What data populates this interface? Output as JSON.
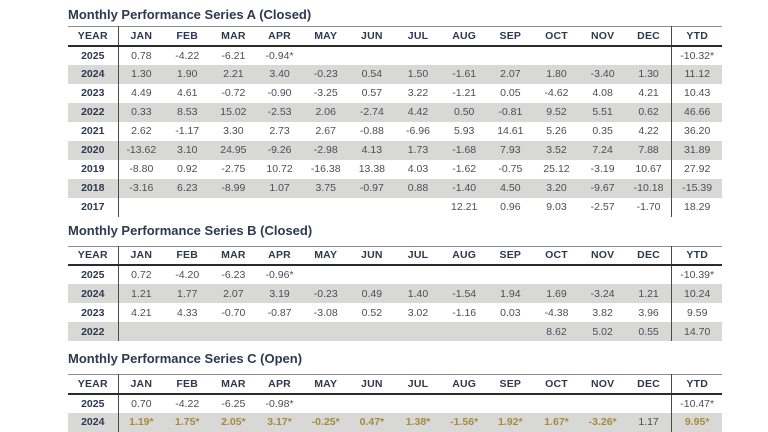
{
  "colors": {
    "title_navy": "#2d3950",
    "data_gray": "#4a4e55",
    "highlight_gold": "#a8893c",
    "row_stripe": "#d8d8d6"
  },
  "tables": [
    {
      "title": "Monthly Performance Series A (Closed)",
      "columns": [
        "YEAR",
        "JAN",
        "FEB",
        "MAR",
        "APR",
        "MAY",
        "JUN",
        "JUL",
        "AUG",
        "SEP",
        "OCT",
        "NOV",
        "DEC",
        "YTD"
      ],
      "rows": [
        {
          "year": "2025",
          "values": [
            "0.78",
            "-4.22",
            "-6.21",
            "-0.94*",
            "",
            "",
            "",
            "",
            "",
            "",
            "",
            ""
          ],
          "ytd": "-10.32*"
        },
        {
          "year": "2024",
          "values": [
            "1.30",
            "1.90",
            "2.21",
            "3.40",
            "-0.23",
            "0.54",
            "1.50",
            "-1.61",
            "2.07",
            "1.80",
            "-3.40",
            "1.30"
          ],
          "ytd": "11.12"
        },
        {
          "year": "2023",
          "values": [
            "4.49",
            "4.61",
            "-0.72",
            "-0.90",
            "-3.25",
            "0.57",
            "3.22",
            "-1.21",
            "0.05",
            "-4.62",
            "4.08",
            "4.21"
          ],
          "ytd": "10.43"
        },
        {
          "year": "2022",
          "values": [
            "0.33",
            "8.53",
            "15.02",
            "-2.53",
            "2.06",
            "-2.74",
            "4.42",
            "0.50",
            "-0.81",
            "9.52",
            "5.51",
            "0.62"
          ],
          "ytd": "46.66"
        },
        {
          "year": "2021",
          "values": [
            "2.62",
            "-1.17",
            "3.30",
            "2.73",
            "2.67",
            "-0.88",
            "-6.96",
            "5.93",
            "14.61",
            "5.26",
            "0.35",
            "4.22"
          ],
          "ytd": "36.20"
        },
        {
          "year": "2020",
          "values": [
            "-13.62",
            "3.10",
            "24.95",
            "-9.26",
            "-2.98",
            "4.13",
            "1.73",
            "-1.68",
            "7.93",
            "3.52",
            "7.24",
            "7.88"
          ],
          "ytd": "31.89"
        },
        {
          "year": "2019",
          "values": [
            "-8.80",
            "0.92",
            "-2.75",
            "10.72",
            "-16.38",
            "13.38",
            "4.03",
            "-1.62",
            "-0.75",
            "25.12",
            "-3.19",
            "10.67"
          ],
          "ytd": "27.92"
        },
        {
          "year": "2018",
          "values": [
            "-3.16",
            "6.23",
            "-8.99",
            "1.07",
            "3.75",
            "-0.97",
            "0.88",
            "-1.40",
            "4.50",
            "3.20",
            "-9.67",
            "-10.18"
          ],
          "ytd": "-15.39"
        },
        {
          "year": "2017",
          "values": [
            "",
            "",
            "",
            "",
            "",
            "",
            "",
            "12.21",
            "0.96",
            "9.03",
            "-2.57",
            "-1.70"
          ],
          "ytd": "18.29"
        }
      ]
    },
    {
      "title": "Monthly Performance Series B (Closed)",
      "columns": [
        "YEAR",
        "JAN",
        "FEB",
        "MAR",
        "APR",
        "MAY",
        "JUN",
        "JUL",
        "AUG",
        "SEP",
        "OCT",
        "NOV",
        "DEC",
        "YTD"
      ],
      "rows": [
        {
          "year": "2025",
          "values": [
            "0.72",
            "-4.20",
            "-6.23",
            "-0.96*",
            "",
            "",
            "",
            "",
            "",
            "",
            "",
            ""
          ],
          "ytd": "-10.39*"
        },
        {
          "year": "2024",
          "values": [
            "1.21",
            "1.77",
            "2.07",
            "3.19",
            "-0.23",
            "0.49",
            "1.40",
            "-1.54",
            "1.94",
            "1.69",
            "-3.24",
            "1.21"
          ],
          "ytd": "10.24"
        },
        {
          "year": "2023",
          "values": [
            "4.21",
            "4.33",
            "-0.70",
            "-0.87",
            "-3.08",
            "0.52",
            "3.02",
            "-1.16",
            "0.03",
            "-4.38",
            "3.82",
            "3.96"
          ],
          "ytd": "9.59"
        },
        {
          "year": "2022",
          "values": [
            "",
            "",
            "",
            "",
            "",
            "",
            "",
            "",
            "",
            "8.62",
            "5.02",
            "0.55"
          ],
          "ytd": "14.70"
        }
      ]
    },
    {
      "title": "Monthly Performance Series C (Open)",
      "columns": [
        "YEAR",
        "JAN",
        "FEB",
        "MAR",
        "APR",
        "MAY",
        "JUN",
        "JUL",
        "AUG",
        "SEP",
        "OCT",
        "NOV",
        "DEC",
        "YTD"
      ],
      "rows": [
        {
          "year": "2025",
          "values": [
            "0.70",
            "-4.22",
            "-6.25",
            "-0.98*",
            "",
            "",
            "",
            "",
            "",
            "",
            "",
            ""
          ],
          "ytd": "-10.47*"
        },
        {
          "year": "2024",
          "values": [
            "1.19*",
            "1.75*",
            "2.05*",
            "3.17*",
            "-0.25*",
            "0.47*",
            "1.38*",
            "-1.56*",
            "1.92*",
            "1.67*",
            "-3.26*",
            "1.17"
          ],
          "ytd": "9.95*",
          "gold_months": [
            0,
            1,
            2,
            3,
            4,
            5,
            6,
            7,
            8,
            9,
            10
          ],
          "gold_ytd": true
        }
      ]
    }
  ]
}
